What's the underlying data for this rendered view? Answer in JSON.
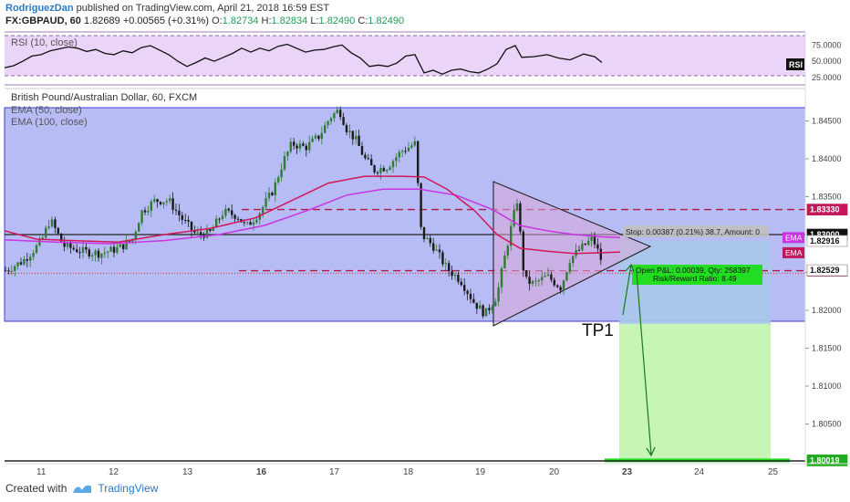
{
  "header": {
    "author": "RodriguezDan",
    "published_text": "published on TradingView.com, April 21, 2018 16:59 EST",
    "symbol": "FX:GBPAUD, 60",
    "last": "1.82689",
    "change": "+0.00565 (+0.31%)",
    "o_label": "O:",
    "o_value": "1.82734",
    "h_label": "H:",
    "h_value": "1.82834",
    "l_label": "L:",
    "l_value": "1.82490",
    "c_label": "C:",
    "c_value": "1.82490"
  },
  "rsi_panel": {
    "legend": "RSI (10, close)",
    "badge": "RSI",
    "ticks": [
      "75.0000",
      "50.0000",
      "25.0000"
    ],
    "ticks_v": [
      75,
      50,
      25
    ]
  },
  "main_panel": {
    "title": "British Pound/Australian Dollar, 60, FXCM",
    "ema1": "EMA (50, close)",
    "ema2": "EMA (100, close)",
    "price_ticks": [
      "1.84500",
      "1.84000",
      "1.83500",
      "1.82500",
      "1.82000",
      "1.81500",
      "1.81000",
      "1.80500"
    ],
    "price_ticks_v": [
      1.845,
      1.84,
      1.835,
      1.825,
      1.82,
      1.815,
      1.81,
      1.805
    ],
    "price_badges": [
      {
        "text": "1.83330",
        "price": 1.8333,
        "color": "#c2185b"
      },
      {
        "text": "1.83000",
        "price": 1.83,
        "color": "#111111"
      },
      {
        "text": "1.82916",
        "price": 1.82916,
        "color": "#ffffff"
      },
      {
        "text": "1.82523",
        "price": 1.82523,
        "color": "#c2185b"
      },
      {
        "text": "1.82529",
        "price": 1.82529,
        "color": "#ffffff"
      },
      {
        "text": "1.80019",
        "price": 1.80019,
        "color": "#1faa1f"
      }
    ],
    "ema_badges": [
      {
        "text": "EMA",
        "price": 1.8296,
        "color": "#c935e0"
      },
      {
        "text": "EMA",
        "price": 1.8276,
        "color": "#c2185b"
      }
    ],
    "stop_label": "Stop: 0.00387 (0.21%) 38.7, Amount: 0",
    "pnl_label": "Open P&L: 0.00039, Qty: 258397",
    "rr_label": "Risk/Reward Ratio: 8.49",
    "tp_label": "TP1"
  },
  "x_axis": {
    "labels": [
      "11",
      "12",
      "13",
      "16",
      "17",
      "18",
      "19",
      "20",
      "23",
      "24",
      "25"
    ],
    "bold": [
      "16",
      "23"
    ]
  },
  "footer": {
    "created_with": "Created with",
    "brand": "TradingView"
  },
  "colors": {
    "range_band": "#b8bcf4",
    "rsi_band": "#ead4f7",
    "ema50": "#d0185a",
    "ema100": "#c935e0",
    "candle_up": "#2e7d32",
    "candle_down": "#1b1b1b",
    "profit": "#c6f5b5",
    "loss": "#a9c8ea",
    "target": "#22dd22",
    "triangle": "#c8a0d8"
  }
}
